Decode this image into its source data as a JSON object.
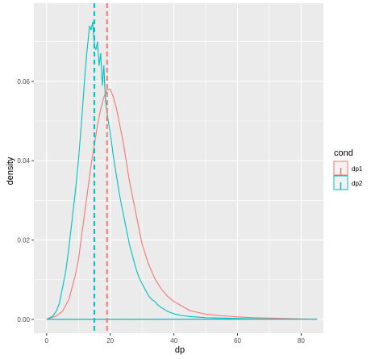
{
  "chart_data": {
    "type": "line",
    "xlabel": "dp",
    "ylabel": "density",
    "xlim": [
      -4,
      87
    ],
    "ylim": [
      -0.0035,
      0.0797
    ],
    "x_ticks": [
      0,
      20,
      40,
      60,
      80
    ],
    "y_ticks": [
      0.0,
      0.02,
      0.04,
      0.06
    ],
    "y_tick_labels": [
      "0.00",
      "0.02",
      "0.04",
      "0.06"
    ],
    "grid": true,
    "legend": {
      "title": "cond",
      "position": "right"
    },
    "colors": {
      "dp1": "#F8766D",
      "dp2": "#00BFC4",
      "panel": "#EBEBEB",
      "grid": "#FFFFFF"
    },
    "series": [
      {
        "name": "dp1",
        "color": "#F8766D",
        "x": [
          0,
          3,
          5,
          7,
          9,
          10,
          11,
          12,
          13,
          14,
          15,
          16,
          17,
          18,
          19,
          20,
          21,
          22,
          23,
          24,
          25,
          26,
          27,
          28,
          29,
          30,
          32,
          34,
          36,
          38,
          40,
          45,
          50,
          55,
          60,
          65,
          70,
          75,
          80,
          85
        ],
        "y": [
          0.0,
          0.0008,
          0.002,
          0.005,
          0.011,
          0.015,
          0.021,
          0.027,
          0.033,
          0.039,
          0.044,
          0.049,
          0.053,
          0.056,
          0.058,
          0.058,
          0.056,
          0.053,
          0.049,
          0.045,
          0.04,
          0.035,
          0.031,
          0.027,
          0.023,
          0.019,
          0.014,
          0.0103,
          0.0077,
          0.0058,
          0.0045,
          0.0022,
          0.0013,
          0.0009,
          0.0006,
          0.0004,
          0.0003,
          0.0002,
          0.0001,
          5e-05
        ]
      },
      {
        "name": "dp2",
        "color": "#00BFC4",
        "x": [
          0,
          2,
          3,
          4,
          5,
          6,
          7,
          8,
          9,
          10,
          11,
          12,
          12.5,
          13,
          13.5,
          14,
          14.5,
          15,
          15.5,
          16,
          16.5,
          17,
          17.5,
          18,
          18.5,
          19,
          20,
          21,
          22,
          23,
          24,
          25,
          26,
          27,
          28,
          29,
          30,
          31,
          32,
          33,
          34,
          35,
          36,
          38,
          40,
          42,
          45,
          50,
          55,
          60,
          65,
          70,
          75,
          80,
          85
        ],
        "y": [
          0.0,
          0.0008,
          0.002,
          0.004,
          0.008,
          0.012,
          0.018,
          0.025,
          0.032,
          0.04,
          0.05,
          0.061,
          0.066,
          0.07,
          0.074,
          0.073,
          0.075,
          0.069,
          0.068,
          0.07,
          0.064,
          0.067,
          0.059,
          0.064,
          0.055,
          0.052,
          0.047,
          0.041,
          0.036,
          0.031,
          0.027,
          0.023,
          0.019,
          0.016,
          0.013,
          0.0106,
          0.009,
          0.0075,
          0.006,
          0.005,
          0.0045,
          0.0036,
          0.003,
          0.002,
          0.0014,
          0.001,
          0.0007,
          0.0004,
          0.0003,
          0.0002,
          0.0001,
          8e-05,
          5e-05,
          3e-05,
          2e-05
        ]
      }
    ],
    "vlines": [
      {
        "series": "dp2",
        "x": 15.0,
        "color": "#00BFC4",
        "style": "dashed"
      },
      {
        "series": "dp1",
        "x": 19.0,
        "color": "#F8766D",
        "style": "dashed"
      }
    ]
  }
}
